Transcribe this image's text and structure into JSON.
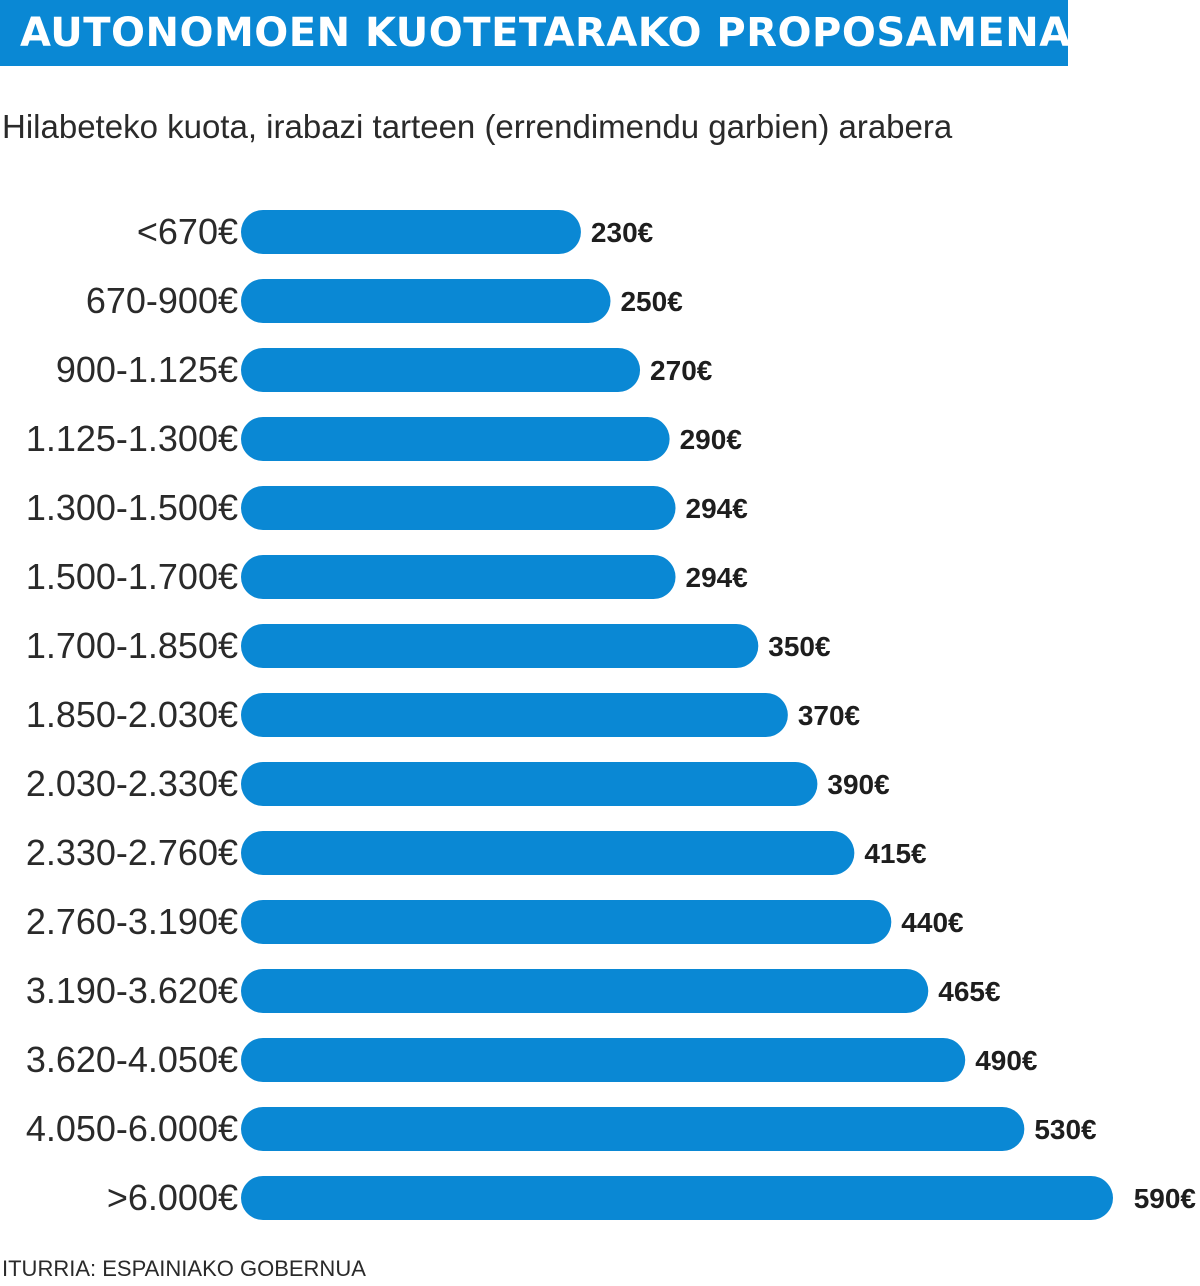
{
  "header": {
    "title": "AUTONOMOEN KUOTETARAKO PROPOSAMENA",
    "subtitle": "Hilabeteko kuota, irabazi tarteen (errendimendu garbien) arabera",
    "source": "ITURRIA: ESPAINIAKO GOBERNUA"
  },
  "colors": {
    "accent": "#0a88d4",
    "bar": "#0a88d4",
    "text": "#1e1e1e"
  },
  "chart_data": {
    "type": "bar",
    "orientation": "horizontal",
    "title": "AUTONOMOEN KUOTETARAKO PROPOSAMENA",
    "subtitle": "Hilabeteko kuota, irabazi tarteen (errendimendu garbien) arabera",
    "grid": false,
    "legend": "none",
    "xlim": [
      0,
      590
    ],
    "categories": [
      "<670€",
      "670-900€",
      "900-1.125€",
      "1.125-1.300€",
      "1.300-1.500€",
      "1.500-1.700€",
      "1.700-1.850€",
      "1.850-2.030€",
      "2.030-2.330€",
      "2.330-2.760€",
      "2.760-3.190€",
      "3.190-3.620€",
      "3.620-4.050€",
      "4.050-6.000€",
      ">6.000€"
    ],
    "values": [
      230,
      250,
      270,
      290,
      294,
      294,
      350,
      370,
      390,
      415,
      440,
      465,
      490,
      530,
      590
    ],
    "value_labels": [
      "230€",
      "250€",
      "270€",
      "290€",
      "294€",
      "294€",
      "350€",
      "370€",
      "390€",
      "415€",
      "440€",
      "465€",
      "490€",
      "530€",
      "590€"
    ]
  }
}
